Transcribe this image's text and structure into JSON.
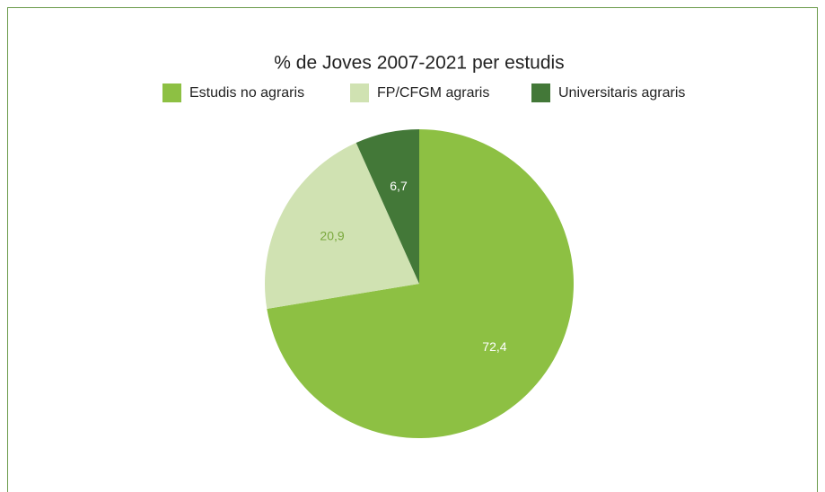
{
  "chart_data": {
    "type": "pie",
    "title": "% de Joves 2007-2021 per estudis",
    "categories": [
      "Estudis no agraris",
      "FP/CFGM agraris",
      "Universitaris agraris"
    ],
    "values": [
      72.4,
      20.9,
      6.7
    ],
    "value_labels": [
      "72,4",
      "20,9",
      "6,7"
    ],
    "colors": [
      "#8dc043",
      "#d0e2b2",
      "#437838"
    ],
    "label_colors": [
      "#ffffff",
      "#7aa83d",
      "#ffffff"
    ],
    "legend": "top"
  }
}
